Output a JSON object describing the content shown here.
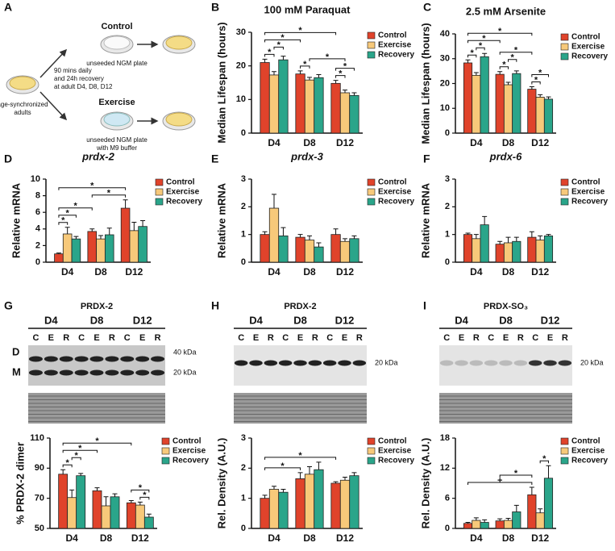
{
  "schematic": {
    "panel": "A",
    "start": [
      "age-synchronized",
      "adults"
    ],
    "protocol": [
      "90 mins daily",
      "and 24h recovery",
      "at adult D4, D8, D12"
    ],
    "control_title": "Control",
    "control_note": [
      "unseeded NGM plate"
    ],
    "exercise_title": "Exercise",
    "exercise_note": [
      "unseeded NGM plate",
      "with M9 buffer"
    ]
  },
  "blots": [
    {
      "title": "PRDX-2",
      "groups": [
        "D4",
        "D8",
        "D12"
      ],
      "lanes": [
        "C",
        "E",
        "R"
      ],
      "rows": [
        "D",
        "M"
      ],
      "markers": [
        "40 kDa",
        "20 kDa"
      ]
    },
    {
      "title": "PRDX-2",
      "groups": [
        "D4",
        "D8",
        "D12"
      ],
      "lanes": [
        "C",
        "E",
        "R"
      ],
      "markers": [
        "20 kDa"
      ]
    },
    {
      "title": "PRDX-SO₃",
      "groups": [
        "D4",
        "D8",
        "D12"
      ],
      "lanes": [
        "C",
        "E",
        "R"
      ],
      "markers": [
        "20 kDa"
      ]
    }
  ],
  "chart_data": [
    {
      "type": "bar",
      "panel": "B",
      "title": "100 mM Paraquat",
      "title_italic": false,
      "y_label": "Median Lifespan (hours)",
      "categories": [
        "D4",
        "D8",
        "D12"
      ],
      "ylim": [
        0,
        30
      ],
      "yticks": [
        0,
        10,
        20,
        30
      ],
      "legend": "right",
      "series": [
        {
          "name": "Control",
          "color": "#e0432b",
          "values": [
            21,
            17.6,
            14.8
          ],
          "errors": [
            1,
            0.9,
            0.9
          ]
        },
        {
          "name": "Exercise",
          "color": "#f7c97a",
          "values": [
            17.3,
            15.8,
            12
          ],
          "errors": [
            1,
            0.8,
            0.8
          ]
        },
        {
          "name": "Recovery",
          "color": "#2aa58a",
          "values": [
            21.8,
            16.5,
            11.2
          ],
          "errors": [
            1.1,
            0.9,
            0.8
          ]
        }
      ],
      "brackets": [
        {
          "text": "*",
          "between": [
            [
              0,
              0
            ],
            [
              0,
              1
            ]
          ]
        },
        {
          "text": "*",
          "between": [
            [
              0,
              1
            ],
            [
              0,
              2
            ]
          ]
        },
        {
          "text": "*",
          "between": [
            [
              0,
              0
            ],
            [
              1,
              0
            ]
          ]
        },
        {
          "text": "*",
          "between": [
            [
              0,
              0
            ],
            [
              2,
              0
            ]
          ]
        },
        {
          "text": "*",
          "between": [
            [
              1,
              0
            ],
            [
              1,
              1
            ]
          ]
        },
        {
          "text": "*",
          "between": [
            [
              1,
              1
            ],
            [
              2,
              1
            ]
          ]
        },
        {
          "text": "*",
          "between": [
            [
              2,
              0
            ],
            [
              2,
              1
            ]
          ]
        },
        {
          "text": "*",
          "between": [
            [
              2,
              0
            ],
            [
              2,
              2
            ]
          ]
        }
      ]
    },
    {
      "type": "bar",
      "panel": "C",
      "title": "2.5 mM Arsenite",
      "title_italic": false,
      "y_label": "Median Lifespan (hours)",
      "categories": [
        "D4",
        "D8",
        "D12"
      ],
      "ylim": [
        0,
        40
      ],
      "yticks": [
        0,
        10,
        20,
        30,
        40
      ],
      "legend": "right",
      "series": [
        {
          "name": "Control",
          "color": "#e0432b",
          "values": [
            28.3,
            23.7,
            17.7
          ],
          "errors": [
            1.2,
            1.1,
            1
          ]
        },
        {
          "name": "Exercise",
          "color": "#f7c97a",
          "values": [
            23.3,
            19.5,
            14.5
          ],
          "errors": [
            1.1,
            1,
            1
          ]
        },
        {
          "name": "Recovery",
          "color": "#2aa58a",
          "values": [
            30.8,
            24,
            13.7
          ],
          "errors": [
            1.3,
            1.1,
            0.9
          ]
        }
      ],
      "brackets": [
        {
          "text": "*",
          "between": [
            [
              0,
              0
            ],
            [
              0,
              1
            ]
          ]
        },
        {
          "text": "*",
          "between": [
            [
              0,
              1
            ],
            [
              0,
              2
            ]
          ]
        },
        {
          "text": "*",
          "between": [
            [
              0,
              0
            ],
            [
              1,
              0
            ]
          ]
        },
        {
          "text": "*",
          "between": [
            [
              0,
              0
            ],
            [
              2,
              0
            ]
          ]
        },
        {
          "text": "*",
          "between": [
            [
              1,
              0
            ],
            [
              1,
              1
            ]
          ]
        },
        {
          "text": "*",
          "between": [
            [
              1,
              1
            ],
            [
              1,
              2
            ]
          ]
        },
        {
          "text": "*",
          "between": [
            [
              1,
              0
            ],
            [
              2,
              0
            ]
          ]
        },
        {
          "text": "*",
          "between": [
            [
              2,
              0
            ],
            [
              2,
              1
            ]
          ]
        },
        {
          "text": "*",
          "between": [
            [
              2,
              0
            ],
            [
              2,
              2
            ]
          ]
        }
      ]
    },
    {
      "type": "bar",
      "panel": "D",
      "title": "prdx-2",
      "title_italic": true,
      "y_label": "Relative mRNA",
      "categories": [
        "D4",
        "D8",
        "D12"
      ],
      "ylim": [
        0,
        10
      ],
      "yticks": [
        0,
        2,
        4,
        6,
        8,
        10
      ],
      "legend": "right",
      "series": [
        {
          "name": "Control",
          "color": "#e0432b",
          "values": [
            1,
            3.7,
            6.5
          ],
          "errors": [
            0.1,
            0.3,
            1
          ]
        },
        {
          "name": "Exercise",
          "color": "#f7c97a",
          "values": [
            3.4,
            2.8,
            3.8
          ],
          "errors": [
            0.8,
            0.4,
            1
          ]
        },
        {
          "name": "Recovery",
          "color": "#2aa58a",
          "values": [
            2.8,
            3.3,
            4.3
          ],
          "errors": [
            0.3,
            0.8,
            0.7
          ]
        }
      ],
      "brackets": [
        {
          "text": "*",
          "between": [
            [
              0,
              0
            ],
            [
              0,
              1
            ]
          ]
        },
        {
          "text": "*",
          "between": [
            [
              0,
              0
            ],
            [
              0,
              2
            ]
          ]
        },
        {
          "text": "*",
          "between": [
            [
              0,
              0
            ],
            [
              1,
              0
            ]
          ]
        },
        {
          "text": "*",
          "between": [
            [
              1,
              0
            ],
            [
              2,
              0
            ]
          ]
        },
        {
          "text": "*",
          "between": [
            [
              0,
              0
            ],
            [
              2,
              0
            ]
          ]
        }
      ]
    },
    {
      "type": "bar",
      "panel": "E",
      "title": "prdx-3",
      "title_italic": true,
      "y_label": "Relative mRNA",
      "categories": [
        "D4",
        "D8",
        "D12"
      ],
      "ylim": [
        0,
        3
      ],
      "yticks": [
        0,
        1,
        2,
        3
      ],
      "legend": "right",
      "series": [
        {
          "name": "Control",
          "color": "#e0432b",
          "values": [
            1,
            0.9,
            1
          ],
          "errors": [
            0.1,
            0.1,
            0.2
          ]
        },
        {
          "name": "Exercise",
          "color": "#f7c97a",
          "values": [
            1.95,
            0.8,
            0.75
          ],
          "errors": [
            0.5,
            0.15,
            0.1
          ]
        },
        {
          "name": "Recovery",
          "color": "#2aa58a",
          "values": [
            0.95,
            0.55,
            0.85
          ],
          "errors": [
            0.3,
            0.15,
            0.1
          ]
        }
      ],
      "brackets": []
    },
    {
      "type": "bar",
      "panel": "F",
      "title": "prdx-6",
      "title_italic": true,
      "y_label": "Relative mRNA",
      "categories": [
        "D4",
        "D8",
        "D12"
      ],
      "ylim": [
        0,
        3
      ],
      "yticks": [
        0,
        1,
        2,
        3
      ],
      "legend": "right",
      "series": [
        {
          "name": "Control",
          "color": "#e0432b",
          "values": [
            1,
            0.65,
            0.9
          ],
          "errors": [
            0.05,
            0.1,
            0.2
          ]
        },
        {
          "name": "Exercise",
          "color": "#f7c97a",
          "values": [
            0.85,
            0.7,
            0.8
          ],
          "errors": [
            0.15,
            0.2,
            0.15
          ]
        },
        {
          "name": "Recovery",
          "color": "#2aa58a",
          "values": [
            1.35,
            0.75,
            0.95
          ],
          "errors": [
            0.3,
            0.15,
            0.05
          ]
        }
      ],
      "brackets": []
    },
    {
      "type": "bar",
      "panel": "G",
      "y_label": "% PRDX-2 dimer",
      "categories": [
        "D4",
        "D8",
        "D12"
      ],
      "ylim": [
        50,
        110
      ],
      "yticks": [
        50,
        70,
        90,
        110
      ],
      "legend": "right",
      "series": [
        {
          "name": "Control",
          "color": "#e0432b",
          "values": [
            86,
            75,
            67
          ],
          "errors": [
            3,
            2,
            1.5
          ]
        },
        {
          "name": "Exercise",
          "color": "#f7c97a",
          "values": [
            70.5,
            65,
            65.5
          ],
          "errors": [
            5,
            6,
            2
          ]
        },
        {
          "name": "Recovery",
          "color": "#2aa58a",
          "values": [
            85,
            71,
            57.5
          ],
          "errors": [
            1.5,
            2,
            2
          ]
        }
      ],
      "brackets": [
        {
          "text": "*",
          "between": [
            [
              0,
              0
            ],
            [
              0,
              1
            ]
          ]
        },
        {
          "text": "*",
          "between": [
            [
              0,
              1
            ],
            [
              0,
              2
            ]
          ]
        },
        {
          "text": "*",
          "between": [
            [
              0,
              0
            ],
            [
              1,
              0
            ]
          ]
        },
        {
          "text": "*",
          "between": [
            [
              0,
              0
            ],
            [
              2,
              0
            ]
          ]
        },
        {
          "text": "*",
          "between": [
            [
              2,
              1
            ],
            [
              2,
              2
            ]
          ]
        },
        {
          "text": "*",
          "between": [
            [
              2,
              0
            ],
            [
              2,
              2
            ]
          ]
        }
      ]
    },
    {
      "type": "bar",
      "panel": "H",
      "y_label": "Rel. Density (A.U.)",
      "categories": [
        "D4",
        "D8",
        "D12"
      ],
      "ylim": [
        0,
        3
      ],
      "yticks": [
        0,
        1,
        2,
        3
      ],
      "legend": "right",
      "series": [
        {
          "name": "Control",
          "color": "#e0432b",
          "values": [
            1,
            1.65,
            1.5
          ],
          "errors": [
            0.1,
            0.2,
            0.05
          ]
        },
        {
          "name": "Exercise",
          "color": "#f7c97a",
          "values": [
            1.3,
            1.8,
            1.6
          ],
          "errors": [
            0.1,
            0.25,
            0.1
          ]
        },
        {
          "name": "Recovery",
          "color": "#2aa58a",
          "values": [
            1.2,
            1.95,
            1.75
          ],
          "errors": [
            0.1,
            0.25,
            0.1
          ]
        }
      ],
      "brackets": [
        {
          "text": "*",
          "between": [
            [
              0,
              0
            ],
            [
              1,
              0
            ]
          ]
        },
        {
          "text": "*",
          "between": [
            [
              0,
              0
            ],
            [
              2,
              0
            ]
          ]
        }
      ]
    },
    {
      "type": "bar",
      "panel": "I",
      "y_label": "Rel. Density (A.U.)",
      "categories": [
        "D4",
        "D8",
        "D12"
      ],
      "ylim": [
        0,
        18
      ],
      "yticks": [
        0,
        6,
        12,
        18
      ],
      "legend": "right",
      "series": [
        {
          "name": "Control",
          "color": "#e0432b",
          "values": [
            1,
            1.5,
            6.7
          ],
          "errors": [
            0.2,
            0.4,
            1.5
          ]
        },
        {
          "name": "Exercise",
          "color": "#f7c97a",
          "values": [
            1.6,
            1.6,
            3.1
          ],
          "errors": [
            0.5,
            0.4,
            0.8
          ]
        },
        {
          "name": "Recovery",
          "color": "#2aa58a",
          "values": [
            1.2,
            3.3,
            10
          ],
          "errors": [
            0.5,
            1.3,
            2.5
          ]
        }
      ],
      "brackets": [
        {
          "text": "+",
          "between": [
            [
              0,
              0
            ],
            [
              2,
              0
            ]
          ]
        },
        {
          "text": "*",
          "between": [
            [
              1,
              0
            ],
            [
              2,
              0
            ]
          ]
        },
        {
          "text": "*",
          "between": [
            [
              2,
              1
            ],
            [
              2,
              2
            ]
          ]
        }
      ]
    }
  ]
}
